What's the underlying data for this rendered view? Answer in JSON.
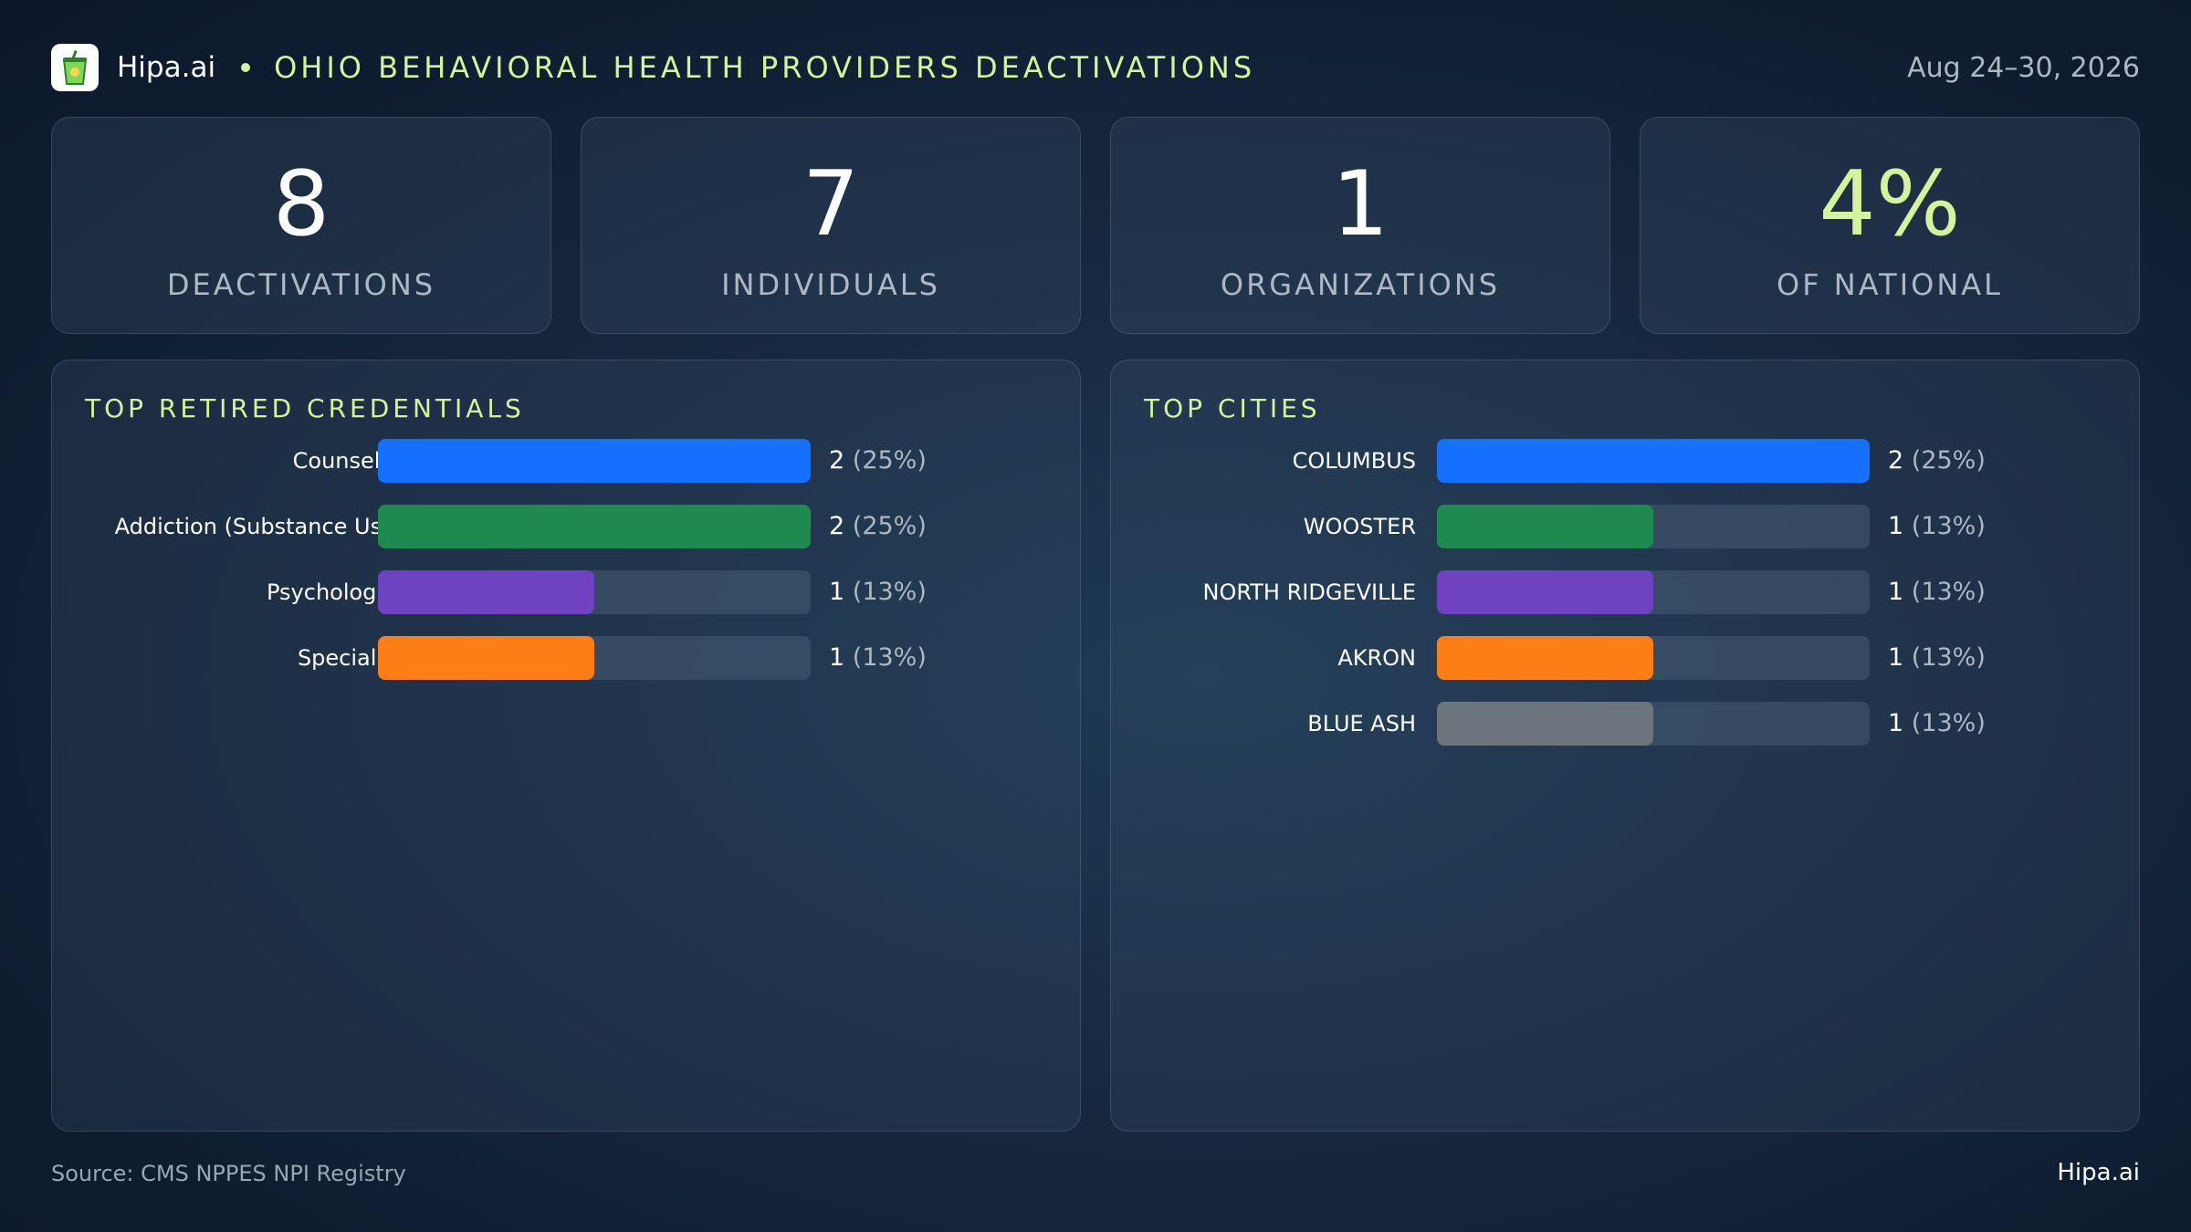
{
  "header": {
    "brand": "Hipa.ai",
    "title": "OHIO BEHAVIORAL HEALTH PROVIDERS DEACTIVATIONS",
    "date_range": "Aug 24–30, 2026",
    "logo_icon": "drink-cup-icon"
  },
  "stats": [
    {
      "value": "8",
      "label": "DEACTIVATIONS"
    },
    {
      "value": "7",
      "label": "INDIVIDUALS"
    },
    {
      "value": "1",
      "label": "ORGANIZATIONS"
    },
    {
      "value": "4%",
      "label": "OF NATIONAL"
    }
  ],
  "colors": {
    "accent": "#d4f39a",
    "blue": "#1570ff",
    "green": "#1e8a50",
    "purple": "#6f42c1",
    "orange": "#fd7e14",
    "gray": "#6c757d"
  },
  "chart_data": [
    {
      "type": "bar",
      "orientation": "horizontal",
      "title": "TOP RETIRED CREDENTIALS",
      "xlim": [
        0,
        2
      ],
      "categories": [
        "Counselor",
        "Addiction (Substance Us...",
        "Psychologist",
        "Specialist"
      ],
      "values": [
        2,
        2,
        1,
        1
      ],
      "percent_labels": [
        "(25%)",
        "(25%)",
        "(13%)",
        "(13%)"
      ],
      "colors": [
        "#1570ff",
        "#1e8a50",
        "#6f42c1",
        "#fd7e14"
      ]
    },
    {
      "type": "bar",
      "orientation": "horizontal",
      "title": "TOP CITIES",
      "xlim": [
        0,
        2
      ],
      "categories": [
        "COLUMBUS",
        "WOOSTER",
        "NORTH RIDGEVILLE",
        "AKRON",
        "BLUE ASH"
      ],
      "values": [
        2,
        1,
        1,
        1,
        1
      ],
      "percent_labels": [
        "(25%)",
        "(13%)",
        "(13%)",
        "(13%)",
        "(13%)"
      ],
      "colors": [
        "#1570ff",
        "#1e8a50",
        "#6f42c1",
        "#fd7e14",
        "#6c757d"
      ]
    }
  ],
  "footer": {
    "source": "Source: CMS NPPES NPI Registry",
    "brand": "Hipa.ai"
  }
}
